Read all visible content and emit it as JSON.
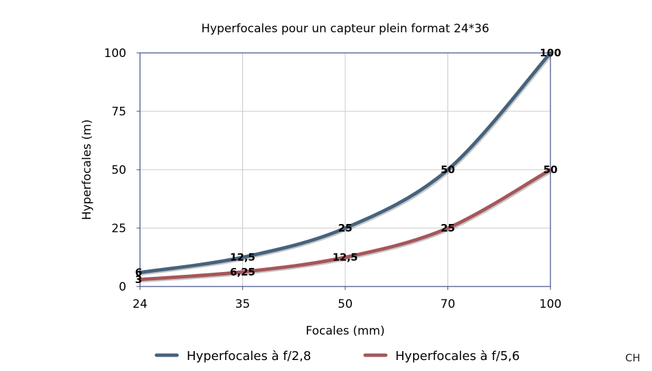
{
  "chart_data": {
    "type": "line",
    "title": "Hyperfocales pour un capteur plein format 24*36",
    "xlabel": "Focales (mm)",
    "ylabel": "Hyperfocales (m)",
    "categories": [
      "24",
      "35",
      "50",
      "70",
      "100"
    ],
    "ylim": [
      0,
      100
    ],
    "yticks": [
      "0",
      "25",
      "50",
      "75",
      "100"
    ],
    "grid": true,
    "legend_position": "bottom",
    "series": [
      {
        "name": "Hyperfocales à f/2,8",
        "color": "#46637d",
        "values": [
          6,
          12.5,
          25,
          50,
          100
        ],
        "labels": [
          "6",
          "12,5",
          "25",
          "50",
          "100"
        ]
      },
      {
        "name": "Hyperfocales à f/5,6",
        "color": "#a6565a",
        "values": [
          3,
          6.25,
          12.5,
          25,
          50
        ],
        "labels": [
          "3",
          "6,25",
          "12,5",
          "25",
          "50"
        ]
      }
    ]
  },
  "watermark": "CH"
}
